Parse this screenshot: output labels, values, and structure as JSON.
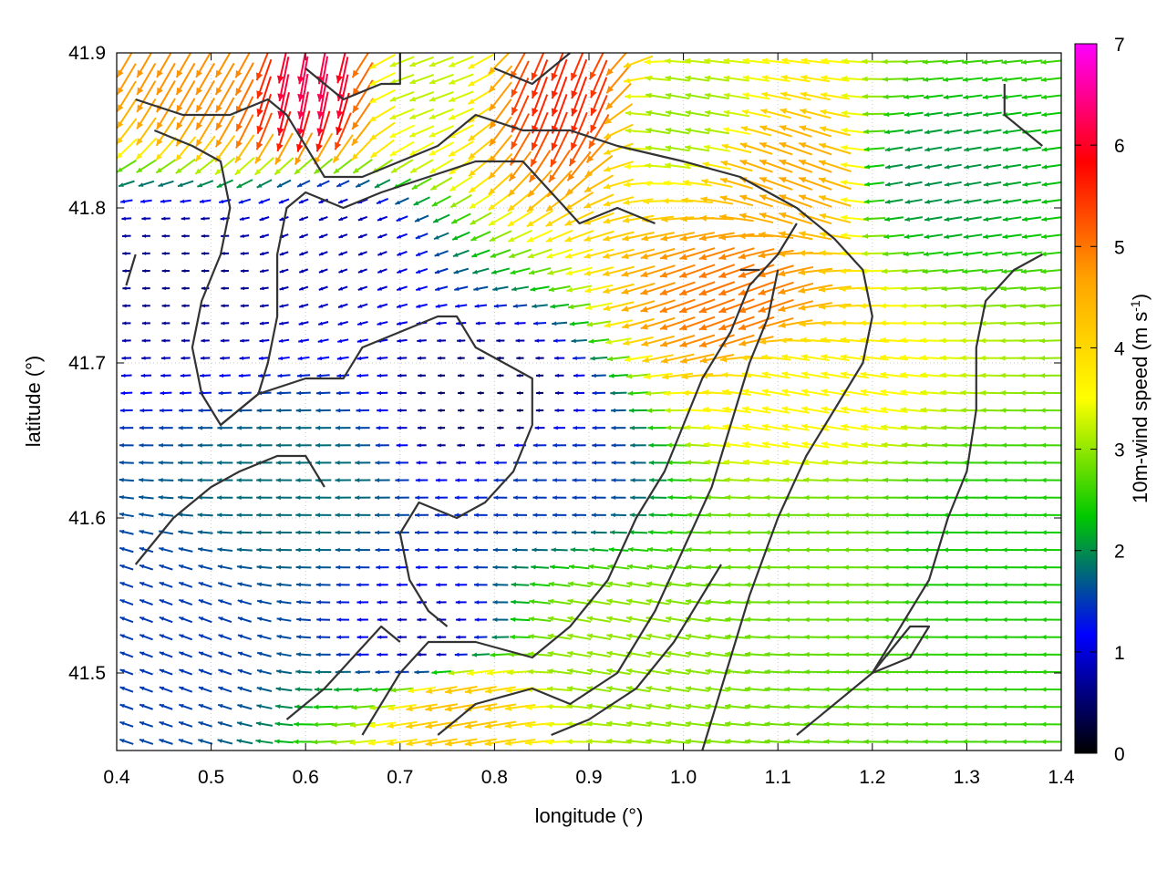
{
  "chart_data": {
    "type": "vector-field",
    "xlabel": "longitude (°)",
    "ylabel": "latitude (°)",
    "xlim": [
      0.4,
      1.4
    ],
    "ylim": [
      41.45,
      41.9
    ],
    "xticks": [
      "0.4",
      "0.5",
      "0.6",
      "0.7",
      "0.8",
      "0.9",
      "1.0",
      "1.1",
      "1.2",
      "1.3",
      "1.4"
    ],
    "yticks": [
      "41.5",
      "41.6",
      "41.7",
      "41.8",
      "41.9"
    ],
    "colorbar": {
      "label": "10m-wind speed (m s",
      "label_sup": "-1",
      "label_end": ")",
      "range": [
        0,
        7
      ],
      "ticks": [
        "0",
        "1",
        "2",
        "3",
        "4",
        "5",
        "6",
        "7"
      ],
      "stops": [
        "#000000",
        "#0000ff",
        "#00c800",
        "#ffff00",
        "#ffa500",
        "#ff0000",
        "#ff00ff"
      ]
    },
    "grid": true,
    "regions": [
      {
        "lon": 0.8,
        "lat": 41.67,
        "speed": 0.4,
        "dir_deg": 180
      },
      {
        "lon": 0.62,
        "lat": 41.78,
        "speed": 0.8,
        "dir_deg": 200
      },
      {
        "lon": 0.48,
        "lat": 41.76,
        "speed": 0.6,
        "dir_deg": 180
      },
      {
        "lon": 0.6,
        "lat": 41.62,
        "speed": 1.8,
        "dir_deg": 180
      },
      {
        "lon": 0.85,
        "lat": 41.63,
        "speed": 1.5,
        "dir_deg": 180
      },
      {
        "lon": 1.05,
        "lat": 41.74,
        "speed": 5.0,
        "dir_deg": 200
      },
      {
        "lon": 1.12,
        "lat": 41.82,
        "speed": 4.6,
        "dir_deg": 160
      },
      {
        "lon": 1.12,
        "lat": 41.68,
        "speed": 3.6,
        "dir_deg": 170
      },
      {
        "lon": 1.15,
        "lat": 41.58,
        "speed": 2.8,
        "dir_deg": 180
      },
      {
        "lon": 1.3,
        "lat": 41.58,
        "speed": 2.4,
        "dir_deg": 180
      },
      {
        "lon": 1.25,
        "lat": 41.82,
        "speed": 2.0,
        "dir_deg": 190
      },
      {
        "lon": 0.5,
        "lat": 41.89,
        "speed": 4.8,
        "dir_deg": 240
      },
      {
        "lon": 0.61,
        "lat": 41.88,
        "speed": 6.2,
        "dir_deg": 260
      },
      {
        "lon": 0.88,
        "lat": 41.87,
        "speed": 5.6,
        "dir_deg": 250
      },
      {
        "lon": 0.72,
        "lat": 41.88,
        "speed": 3.2,
        "dir_deg": 200
      },
      {
        "lon": 0.76,
        "lat": 41.48,
        "speed": 4.3,
        "dir_deg": 190
      },
      {
        "lon": 0.92,
        "lat": 41.52,
        "speed": 3.0,
        "dir_deg": 170
      },
      {
        "lon": 0.45,
        "lat": 41.52,
        "speed": 1.5,
        "dir_deg": 160
      },
      {
        "lon": 0.73,
        "lat": 41.52,
        "speed": 0.8,
        "dir_deg": 180
      },
      {
        "lon": 0.99,
        "lat": 41.86,
        "speed": 3.0,
        "dir_deg": 170
      }
    ],
    "contours": [
      [
        [
          0.42,
          41.87
        ],
        [
          0.47,
          41.86
        ],
        [
          0.52,
          41.86
        ],
        [
          0.56,
          41.87
        ],
        [
          0.58,
          41.86
        ],
        [
          0.6,
          41.84
        ],
        [
          0.62,
          41.82
        ],
        [
          0.66,
          41.82
        ],
        [
          0.7,
          41.83
        ],
        [
          0.74,
          41.84
        ],
        [
          0.78,
          41.86
        ],
        [
          0.83,
          41.85
        ],
        [
          0.88,
          41.85
        ],
        [
          0.93,
          41.84
        ],
        [
          1.0,
          41.83
        ],
        [
          1.06,
          41.82
        ],
        [
          1.12,
          41.8
        ],
        [
          1.16,
          41.78
        ],
        [
          1.19,
          41.76
        ],
        [
          1.2,
          41.73
        ],
        [
          1.19,
          41.7
        ],
        [
          1.16,
          41.67
        ],
        [
          1.13,
          41.64
        ],
        [
          1.1,
          41.6
        ],
        [
          1.07,
          41.55
        ],
        [
          1.05,
          41.51
        ],
        [
          1.03,
          41.47
        ],
        [
          1.02,
          41.45
        ]
      ],
      [
        [
          0.44,
          41.85
        ],
        [
          0.48,
          41.84
        ],
        [
          0.51,
          41.83
        ],
        [
          0.52,
          41.8
        ],
        [
          0.51,
          41.77
        ],
        [
          0.49,
          41.74
        ],
        [
          0.48,
          41.71
        ],
        [
          0.49,
          41.68
        ],
        [
          0.51,
          41.66
        ],
        [
          0.53,
          41.67
        ],
        [
          0.55,
          41.68
        ],
        [
          0.56,
          41.7
        ],
        [
          0.57,
          41.73
        ],
        [
          0.57,
          41.77
        ],
        [
          0.58,
          41.8
        ],
        [
          0.6,
          41.81
        ],
        [
          0.64,
          41.8
        ],
        [
          0.68,
          41.81
        ],
        [
          0.73,
          41.82
        ],
        [
          0.78,
          41.83
        ],
        [
          0.83,
          41.83
        ],
        [
          0.86,
          41.81
        ],
        [
          0.89,
          41.79
        ],
        [
          0.93,
          41.8
        ],
        [
          0.97,
          41.79
        ]
      ],
      [
        [
          0.51,
          41.66
        ],
        [
          0.55,
          41.68
        ],
        [
          0.6,
          41.69
        ],
        [
          0.64,
          41.69
        ],
        [
          0.66,
          41.71
        ],
        [
          0.7,
          41.72
        ],
        [
          0.74,
          41.73
        ],
        [
          0.76,
          41.73
        ],
        [
          0.78,
          41.71
        ],
        [
          0.81,
          41.7
        ],
        [
          0.84,
          41.69
        ],
        [
          0.84,
          41.66
        ],
        [
          0.82,
          41.63
        ],
        [
          0.79,
          41.61
        ],
        [
          0.76,
          41.6
        ],
        [
          0.72,
          41.61
        ],
        [
          0.7,
          41.59
        ],
        [
          0.71,
          41.56
        ],
        [
          0.73,
          41.54
        ],
        [
          0.75,
          41.53
        ]
      ],
      [
        [
          0.42,
          41.57
        ],
        [
          0.46,
          41.6
        ],
        [
          0.5,
          41.62
        ],
        [
          0.53,
          41.63
        ],
        [
          0.57,
          41.64
        ],
        [
          0.6,
          41.64
        ],
        [
          0.62,
          41.62
        ]
      ],
      [
        [
          0.66,
          41.46
        ],
        [
          0.7,
          41.5
        ],
        [
          0.73,
          41.52
        ],
        [
          0.78,
          41.52
        ],
        [
          0.84,
          41.51
        ],
        [
          0.88,
          41.53
        ],
        [
          0.92,
          41.56
        ],
        [
          0.95,
          41.6
        ],
        [
          0.98,
          41.63
        ],
        [
          1.0,
          41.66
        ],
        [
          1.02,
          41.69
        ],
        [
          1.05,
          41.72
        ],
        [
          1.07,
          41.75
        ],
        [
          1.1,
          41.77
        ],
        [
          1.12,
          41.79
        ]
      ],
      [
        [
          0.74,
          41.46
        ],
        [
          0.78,
          41.48
        ],
        [
          0.84,
          41.49
        ],
        [
          0.88,
          41.48
        ],
        [
          0.93,
          41.5
        ],
        [
          0.97,
          41.54
        ],
        [
          1.0,
          41.58
        ],
        [
          1.03,
          41.62
        ],
        [
          1.05,
          41.66
        ],
        [
          1.07,
          41.7
        ],
        [
          1.09,
          41.73
        ],
        [
          1.1,
          41.76
        ]
      ],
      [
        [
          0.86,
          41.46
        ],
        [
          0.9,
          41.47
        ],
        [
          0.95,
          41.49
        ],
        [
          0.99,
          41.52
        ],
        [
          1.02,
          41.55
        ],
        [
          1.04,
          41.57
        ]
      ],
      [
        [
          1.12,
          41.46
        ],
        [
          1.16,
          41.48
        ],
        [
          1.2,
          41.5
        ],
        [
          1.23,
          41.53
        ],
        [
          1.26,
          41.56
        ],
        [
          1.28,
          41.6
        ],
        [
          1.3,
          41.63
        ],
        [
          1.31,
          41.67
        ],
        [
          1.31,
          41.71
        ],
        [
          1.32,
          41.74
        ],
        [
          1.35,
          41.76
        ],
        [
          1.38,
          41.77
        ]
      ],
      [
        [
          1.34,
          41.88
        ],
        [
          1.34,
          41.86
        ],
        [
          1.38,
          41.84
        ]
      ],
      [
        [
          0.8,
          41.89
        ],
        [
          0.84,
          41.88
        ],
        [
          0.88,
          41.9
        ]
      ],
      [
        [
          0.6,
          41.89
        ],
        [
          0.64,
          41.87
        ],
        [
          0.68,
          41.88
        ],
        [
          0.7,
          41.88
        ],
        [
          0.7,
          41.9
        ]
      ],
      [
        [
          1.06,
          41.76
        ],
        [
          1.08,
          41.76
        ],
        [
          1.06,
          41.76
        ]
      ],
      [
        [
          1.2,
          41.5
        ],
        [
          1.24,
          41.51
        ],
        [
          1.26,
          41.53
        ],
        [
          1.24,
          41.53
        ],
        [
          1.2,
          41.5
        ]
      ],
      [
        [
          0.41,
          41.75
        ],
        [
          0.42,
          41.77
        ]
      ],
      [
        [
          0.58,
          41.47
        ],
        [
          0.62,
          41.49
        ],
        [
          0.65,
          41.51
        ],
        [
          0.68,
          41.53
        ],
        [
          0.7,
          41.52
        ]
      ]
    ]
  }
}
